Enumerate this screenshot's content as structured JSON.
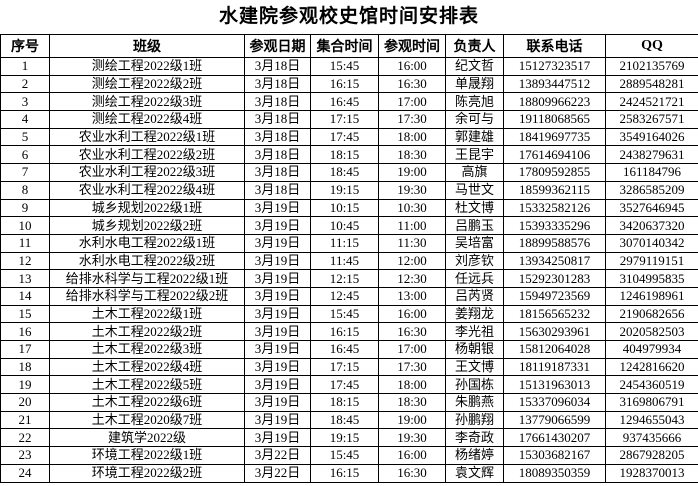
{
  "title": "水建院参观校史馆时间安排表",
  "headers": [
    "序号",
    "班级",
    "参观日期",
    "集合时间",
    "参观时间",
    "负责人",
    "联系电话",
    "QQ"
  ],
  "rows": [
    [
      "1",
      "测绘工程2022级1班",
      "3月18日",
      "15:45",
      "16:00",
      "纪文哲",
      "15127323517",
      "2102135769"
    ],
    [
      "2",
      "测绘工程2022级2班",
      "3月18日",
      "16:15",
      "16:30",
      "单晟翔",
      "13893447512",
      "2889548281"
    ],
    [
      "3",
      "测绘工程2022级3班",
      "3月18日",
      "16:45",
      "17:00",
      "陈亮旭",
      "18809966223",
      "2424521721"
    ],
    [
      "4",
      "测绘工程2022级4班",
      "3月18日",
      "17:15",
      "17:30",
      "余可与",
      "19118068565",
      "2583267571"
    ],
    [
      "5",
      "农业水利工程2022级1班",
      "3月18日",
      "17:45",
      "18:00",
      "郭建雄",
      "18419697735",
      "3549164026"
    ],
    [
      "6",
      "农业水利工程2022级2班",
      "3月18日",
      "18:15",
      "18:30",
      "王昆宇",
      "17614694106",
      "2438279631"
    ],
    [
      "7",
      "农业水利工程2022级3班",
      "3月18日",
      "18:45",
      "19:00",
      "高旗",
      "17809592855",
      "161184796"
    ],
    [
      "8",
      "农业水利工程2022级4班",
      "3月18日",
      "19:15",
      "19:30",
      "马世文",
      "18599362115",
      "3286585209"
    ],
    [
      "9",
      "城乡规划2022级1班",
      "3月19日",
      "10:15",
      "10:30",
      "杜文博",
      "15332582126",
      "3527646945"
    ],
    [
      "10",
      "城乡规划2022级2班",
      "3月19日",
      "10:45",
      "11:00",
      "吕鹏玉",
      "15393335296",
      "3420637320"
    ],
    [
      "11",
      "水利水电工程2022级1班",
      "3月19日",
      "11:15",
      "11:30",
      "吴培富",
      "18899588576",
      "3070140342"
    ],
    [
      "12",
      "水利水电工程2022级2班",
      "3月19日",
      "11:45",
      "12:00",
      "刘彦钦",
      "13934250817",
      "2979119151"
    ],
    [
      "13",
      "给排水科学与工程2022级1班",
      "3月19日",
      "12:15",
      "12:30",
      "任远兵",
      "15292301283",
      "3104995835"
    ],
    [
      "14",
      "给排水科学与工程2022级2班",
      "3月19日",
      "12:45",
      "13:00",
      "吕芮贤",
      "15949723569",
      "1246198961"
    ],
    [
      "15",
      "土木工程2022级1班",
      "3月19日",
      "15:45",
      "16:00",
      "姜翔龙",
      "18156565232",
      "2190682656"
    ],
    [
      "16",
      "土木工程2022级2班",
      "3月19日",
      "16:15",
      "16:30",
      "李光祖",
      "15630293961",
      "2020582503"
    ],
    [
      "17",
      "土木工程2022级3班",
      "3月19日",
      "16:45",
      "17:00",
      "杨朝银",
      "15812064028",
      "404979934"
    ],
    [
      "18",
      "土木工程2022级4班",
      "3月19日",
      "17:15",
      "17:30",
      "王文博",
      "18119187331",
      "1242816620"
    ],
    [
      "19",
      "土木工程2022级5班",
      "3月19日",
      "17:45",
      "18:00",
      "孙国栋",
      "15131963013",
      "2454360519"
    ],
    [
      "20",
      "土木工程2022级6班",
      "3月19日",
      "18:15",
      "18:30",
      "朱鹏燕",
      "15337096034",
      "3169806791"
    ],
    [
      "21",
      "土木工程2020级7班",
      "3月19日",
      "18:45",
      "19:00",
      "孙鹏翔",
      "13779066599",
      "1294655043"
    ],
    [
      "22",
      "建筑学2022级",
      "3月19日",
      "19:15",
      "19:30",
      "李奇政",
      "17661430207",
      "937435666"
    ],
    [
      "23",
      "环境工程2022级1班",
      "3月22日",
      "15:45",
      "16:00",
      "杨绪婷",
      "15303682167",
      "2867928205"
    ],
    [
      "24",
      "环境工程2022级2班",
      "3月22日",
      "16:15",
      "16:30",
      "袁文辉",
      "18089350359",
      "1928370013"
    ]
  ]
}
